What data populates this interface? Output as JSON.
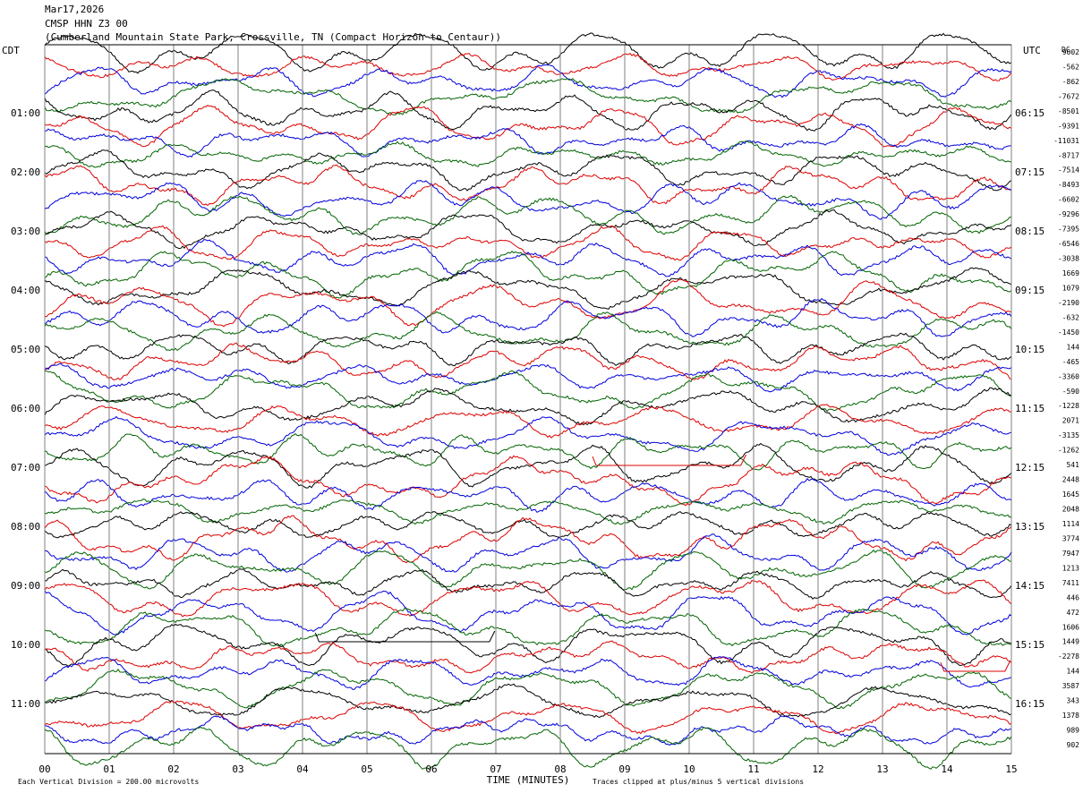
{
  "header": {
    "date": "Mar17,2026",
    "station": "CMSP HHN Z3 00",
    "location": "(Cumberland Mountain State Park, Crossville, TN (Compact Horizon to Centaur))"
  },
  "axes": {
    "left_label": "CDT",
    "right_label": "UTC",
    "dc_label": "DC",
    "x_label": "TIME (MINUTES)",
    "x_ticks": [
      "00",
      "01",
      "02",
      "03",
      "04",
      "05",
      "06",
      "07",
      "08",
      "09",
      "10",
      "11",
      "12",
      "13",
      "14",
      "15"
    ]
  },
  "footer": {
    "scale_note": "Each Vertical Division =  200.00 microvolts",
    "clip_note": "Traces clipped at plus/minus 5 vertical divisions"
  },
  "colors": {
    "black": "#000000",
    "red": "#dd0000",
    "blue": "#0000dd",
    "green": "#006400",
    "grid": "#808080"
  },
  "chart_data": {
    "type": "line",
    "title": "CMSP HHN Z3 00",
    "xlabel": "TIME (MINUTES)",
    "xlim": [
      0,
      15
    ],
    "trace_minutes": 15,
    "color_cycle": [
      "black",
      "red",
      "blue",
      "green"
    ],
    "cdt_hour_labels": [
      "01:00",
      "02:00",
      "03:00",
      "04:00",
      "05:00",
      "06:00",
      "07:00",
      "08:00",
      "09:00",
      "10:00",
      "11:00"
    ],
    "utc_hour_labels": [
      "06:15",
      "07:15",
      "08:15",
      "09:15",
      "10:15",
      "11:15",
      "12:15",
      "13:15",
      "14:15",
      "15:15",
      "16:15"
    ],
    "dc_offsets": [
      "9002",
      "-562",
      "-862",
      "-7672",
      "-8501",
      "-9391",
      "-11031",
      "-8717",
      "-7514",
      "-8493",
      "-6602",
      "-9296",
      "-7395",
      "-6546",
      "-3038",
      "1669",
      "1079",
      "-2190",
      "-632",
      "-1450",
      "144",
      "-465",
      "-3360",
      "-590",
      "-1228",
      "2071",
      "-3135",
      "-1262",
      "541",
      "2448",
      "1645",
      "2048",
      "1114",
      "3774",
      "7947",
      "1213",
      "7411",
      "446",
      "472",
      "1606",
      "1449",
      "-2278",
      "144",
      "3587",
      "343",
      "1378",
      "989",
      "902"
    ],
    "clipped_events": [
      {
        "trace_color": "black",
        "start_minute": 4.2,
        "end_minute": 6.9
      },
      {
        "trace_color": "red",
        "start_minute": 8.5,
        "end_minute": 10.8
      },
      {
        "trace_color": "red",
        "start_minute": 13.9,
        "end_minute": 14.9
      }
    ]
  }
}
